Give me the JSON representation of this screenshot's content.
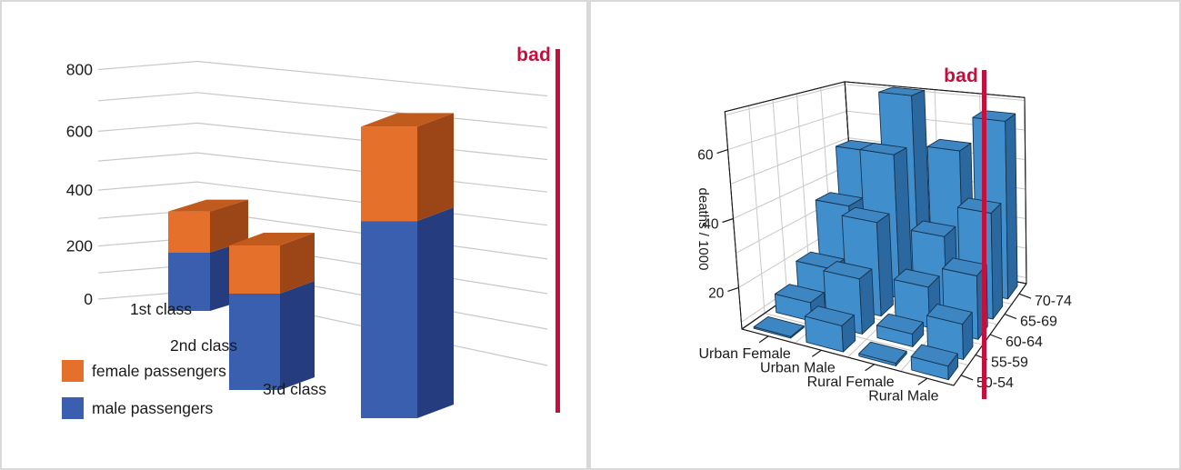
{
  "stamp_color": "#c4103c",
  "frame_color": "#d9d9d9",
  "text_color": "#1a1a1a",
  "grid_color": "#c8c8c8",
  "chart_data": [
    {
      "id": "titanic-passengers-3d-stacked-bar",
      "type": "bar",
      "variant": "3d-perspective-stacked",
      "annotation": "bad",
      "categories": [
        "1st class",
        "2nd class",
        "3rd class"
      ],
      "series": [
        {
          "name": "female passengers",
          "values": [
            145,
            106,
            216
          ],
          "color_front": "#e5702b",
          "color_side": "#9c4517",
          "color_top": "#c05a1d"
        },
        {
          "name": "male passengers",
          "values": [
            179,
            171,
            493
          ],
          "color_front": "#3a5fae",
          "color_side": "#253c7e"
        }
      ],
      "stack_bottom_index": 1,
      "yticks": [
        0,
        200,
        400,
        600,
        800
      ],
      "ylim": [
        0,
        800
      ],
      "grid_interval": 100,
      "grid": true,
      "legend_position": "bottom-left"
    },
    {
      "id": "virginia-death-rates-3d-bar",
      "type": "bar",
      "variant": "3d-perspective",
      "annotation": "bad",
      "categories": [
        "Urban Female",
        "Urban Male",
        "Rural Female",
        "Rural Male"
      ],
      "depth_categories": [
        "50-54",
        "55-59",
        "60-64",
        "65-69",
        "70-74"
      ],
      "zlabel": "deaths / 1000",
      "zticks": [
        20,
        40,
        60
      ],
      "zlim": [
        8,
        71
      ],
      "grid": true,
      "series": [
        {
          "name": "Urban Female",
          "values": [
            8.4,
            13.6,
            19.3,
            35.1,
            50.0
          ]
        },
        {
          "name": "Urban Male",
          "values": [
            15.4,
            24.3,
            37.0,
            54.6,
            71.1
          ]
        },
        {
          "name": "Rural Female",
          "values": [
            8.7,
            11.7,
            20.3,
            30.9,
            54.3
          ]
        },
        {
          "name": "Rural Male",
          "values": [
            11.7,
            18.1,
            26.9,
            41.0,
            66.0
          ]
        }
      ],
      "bar_colors": {
        "front": "#418ecd",
        "side": "#2a689f",
        "top": "#3e86c1",
        "outline": "#16334f"
      }
    }
  ]
}
